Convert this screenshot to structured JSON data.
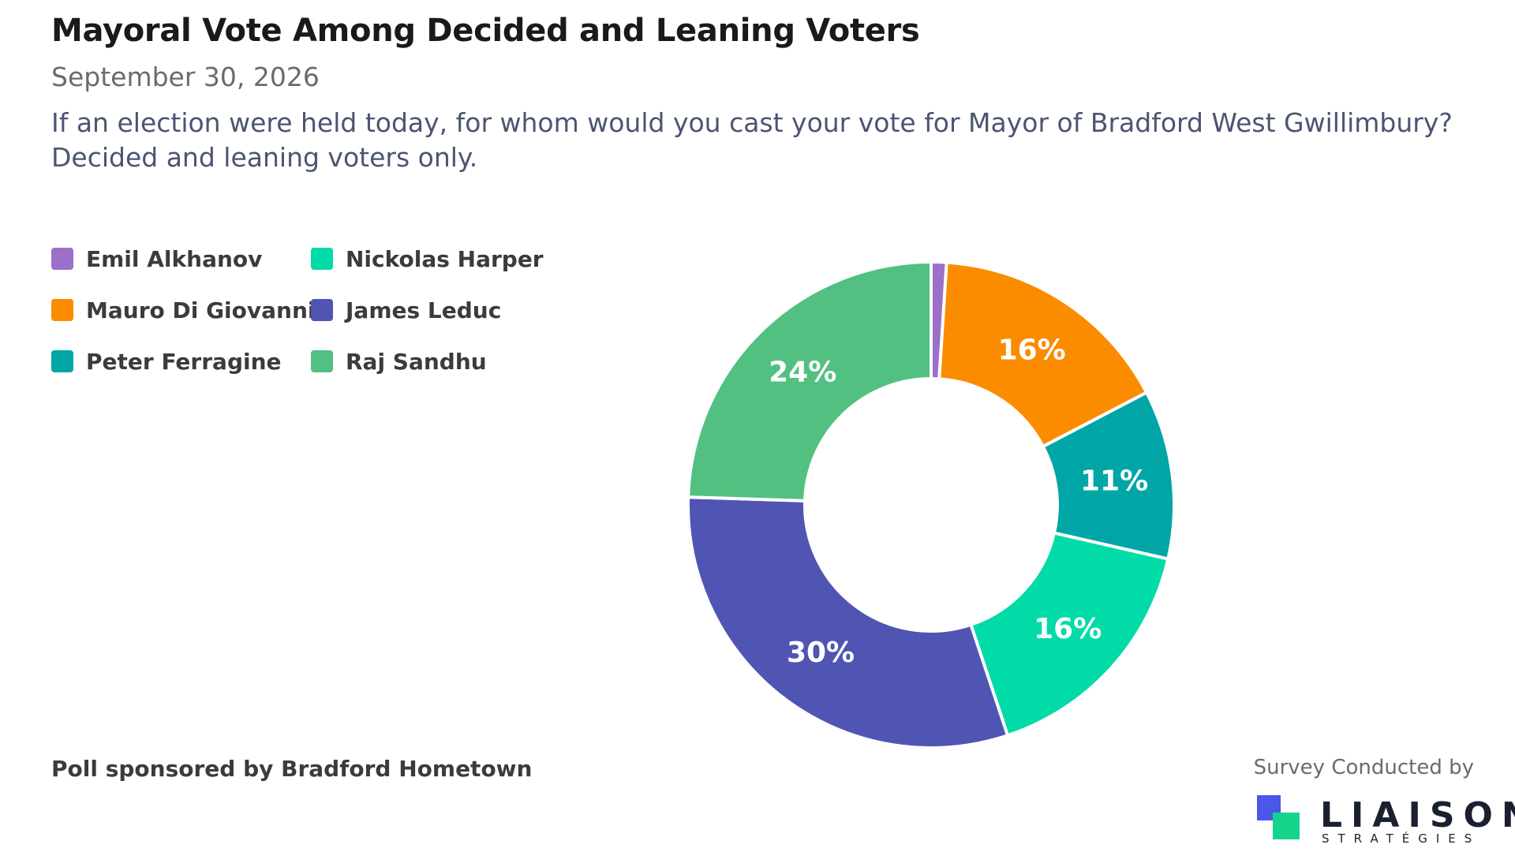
{
  "header": {
    "title": "Mayoral Vote Among Decided and Leaning Voters",
    "date": "September 30, 2026",
    "question_line1": "If an election were held today, for whom would you cast your vote for Mayor of Bradford West Gwillimbury?",
    "question_line2": "Decided and leaning voters only."
  },
  "footer": {
    "sponsor": "Poll sponsored by Bradford Hometown",
    "conducted_by": "Survey Conducted by",
    "logo_name": "LIAISON",
    "logo_sub": "STRATÉGIES",
    "logo_colors": [
      "#4a57e8",
      "#17d48c"
    ]
  },
  "chart_data": {
    "type": "pie",
    "variant": "donut",
    "legend_position": "top-left",
    "slices": [
      {
        "name": "Emil Alkhanov",
        "value": 1,
        "label": "",
        "color": "#9c6fc9"
      },
      {
        "name": "Mauro Di Giovanni",
        "value": 16,
        "label": "16%",
        "color": "#fb8c00"
      },
      {
        "name": "Peter Ferragine",
        "value": 11,
        "label": "11%",
        "color": "#00a6a6"
      },
      {
        "name": "Nickolas Harper",
        "value": 16,
        "label": "16%",
        "color": "#00dba8"
      },
      {
        "name": "James Leduc",
        "value": 30,
        "label": "30%",
        "color": "#5055b3"
      },
      {
        "name": "Raj Sandhu",
        "value": 24,
        "label": "24%",
        "color": "#52c080"
      }
    ],
    "legend_order": [
      "Emil Alkhanov",
      "Nickolas Harper",
      "Mauro Di Giovanni",
      "James Leduc",
      "Peter Ferragine",
      "Raj Sandhu"
    ]
  }
}
